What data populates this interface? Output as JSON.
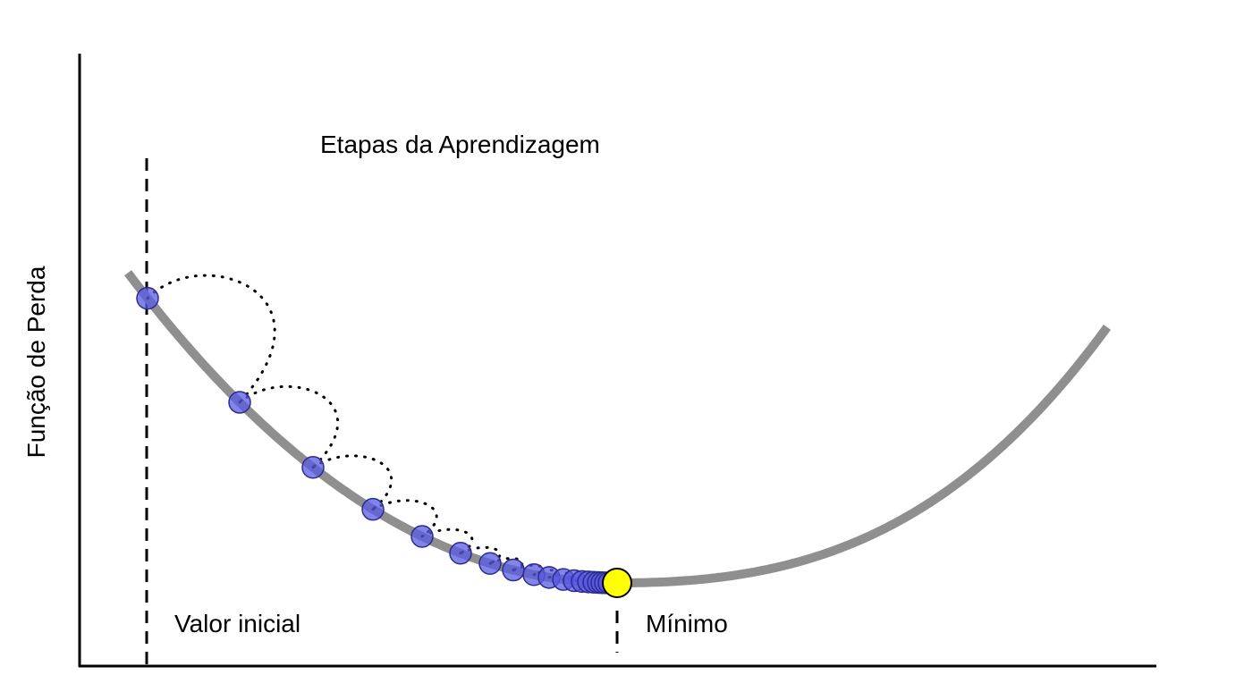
{
  "labels": {
    "y_axis": "Função de Perda",
    "steps": "Etapas da Aprendizagem",
    "initial_value": "Valor inicial",
    "minimum": "Mínimo"
  },
  "colors": {
    "curve": "#8f8f8f",
    "step_point_fill": "#5a5ae6",
    "step_point_stroke": "#2d2d8c",
    "minimum_point_fill": "#ffff00",
    "axis": "#000000",
    "arc": "#000000"
  }
}
